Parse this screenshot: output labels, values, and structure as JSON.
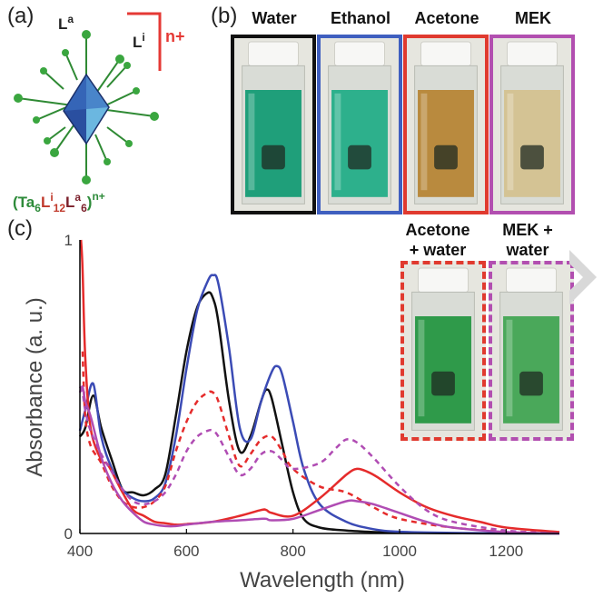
{
  "panels": {
    "a": "(a)",
    "b": "(b)",
    "c": "(c)"
  },
  "structure": {
    "ligand_apical": "L",
    "ligand_apical_sup": "a",
    "ligand_inner": "L",
    "ligand_inner_sup": "i",
    "charge": "n+",
    "formula": {
      "open": "(",
      "ta": "Ta",
      "ta_sub": "6",
      "li": "L",
      "li_sup": "i",
      "li_sub": "12",
      "la": "L",
      "la_sup": "a",
      "la_sub": "6",
      "close": ")",
      "charge": "n+"
    },
    "colors": {
      "ta": "#2e8b3a",
      "li": "#c0392b",
      "la": "#7b1f2a",
      "bracket": "#e53935"
    }
  },
  "cuvettes": [
    {
      "label": "Water",
      "frame": "#111111",
      "liquid": "#1f9f7a",
      "dashed": false
    },
    {
      "label": "Ethanol",
      "frame": "#3f5fbf",
      "liquid": "#2db08c",
      "dashed": false
    },
    {
      "label": "Acetone",
      "frame": "#e03a2f",
      "liquid": "#b98a3e",
      "dashed": false
    },
    {
      "label": "MEK",
      "frame": "#b24fb0",
      "liquid": "#d4c394",
      "dashed": false
    },
    {
      "label": "Acetone + water",
      "line1": "Acetone",
      "line2": "+ water",
      "frame": "#e03a2f",
      "liquid": "#2f9a4a",
      "dashed": true
    },
    {
      "label": "MEK + water",
      "line1": "MEK +",
      "line2": "water",
      "frame": "#b24fb0",
      "liquid": "#4aa85a",
      "dashed": true
    }
  ],
  "chart_data": {
    "type": "line",
    "xlabel": "Wavelength (nm)",
    "ylabel": "Absorbance (a. u.)",
    "xlim": [
      400,
      1300
    ],
    "ylim": [
      0,
      1
    ],
    "xticks": [
      400,
      600,
      800,
      1000,
      1200
    ],
    "yticks": [
      0,
      1
    ],
    "grid": false,
    "series": [
      {
        "color": "#111111",
        "dash": false,
        "x": [
          400,
          410,
          425,
          440,
          460,
          480,
          500,
          520,
          540,
          560,
          580,
          600,
          620,
          640,
          650,
          660,
          680,
          700,
          720,
          740,
          750,
          760,
          780,
          800,
          820,
          850,
          900,
          950,
          1000,
          1100,
          1200,
          1300
        ],
        "y": [
          0.33,
          0.36,
          0.47,
          0.36,
          0.25,
          0.15,
          0.14,
          0.13,
          0.15,
          0.2,
          0.4,
          0.62,
          0.77,
          0.82,
          0.8,
          0.72,
          0.45,
          0.28,
          0.33,
          0.45,
          0.49,
          0.46,
          0.3,
          0.14,
          0.05,
          0.02,
          0.01,
          0.005,
          0.003,
          0.001,
          0.0,
          0.0
        ]
      },
      {
        "color": "#3b4bb5",
        "dash": false,
        "x": [
          400,
          410,
          425,
          440,
          460,
          480,
          500,
          520,
          540,
          560,
          580,
          600,
          620,
          640,
          650,
          660,
          680,
          700,
          720,
          740,
          760,
          770,
          780,
          800,
          820,
          850,
          900,
          950,
          1000,
          1100,
          1200,
          1300
        ],
        "y": [
          0.35,
          0.42,
          0.51,
          0.33,
          0.22,
          0.15,
          0.12,
          0.11,
          0.12,
          0.17,
          0.33,
          0.56,
          0.76,
          0.86,
          0.88,
          0.85,
          0.63,
          0.36,
          0.32,
          0.45,
          0.55,
          0.57,
          0.54,
          0.38,
          0.22,
          0.1,
          0.04,
          0.015,
          0.006,
          0.002,
          0.001,
          0.0
        ]
      },
      {
        "color": "#e52b2b",
        "dash": false,
        "x": [
          402,
          405,
          410,
          420,
          440,
          450,
          460,
          480,
          500,
          520,
          540,
          560,
          580,
          600,
          650,
          700,
          740,
          750,
          760,
          800,
          850,
          900,
          920,
          940,
          960,
          1000,
          1050,
          1100,
          1150,
          1200,
          1300
        ],
        "y": [
          1.0,
          0.9,
          0.6,
          0.36,
          0.25,
          0.24,
          0.21,
          0.14,
          0.08,
          0.06,
          0.04,
          0.035,
          0.03,
          0.032,
          0.04,
          0.06,
          0.08,
          0.08,
          0.07,
          0.06,
          0.12,
          0.2,
          0.22,
          0.21,
          0.19,
          0.14,
          0.09,
          0.06,
          0.04,
          0.02,
          0.005
        ]
      },
      {
        "color": "#e52b2b",
        "dash": true,
        "x": [
          405,
          410,
          420,
          440,
          460,
          480,
          500,
          520,
          540,
          560,
          580,
          600,
          620,
          640,
          650,
          660,
          680,
          700,
          720,
          740,
          760,
          780,
          800,
          850,
          900,
          950,
          1000,
          1100,
          1200,
          1300
        ],
        "y": [
          0.62,
          0.4,
          0.3,
          0.24,
          0.16,
          0.11,
          0.09,
          0.09,
          0.11,
          0.16,
          0.28,
          0.38,
          0.45,
          0.48,
          0.48,
          0.45,
          0.33,
          0.23,
          0.27,
          0.32,
          0.33,
          0.28,
          0.22,
          0.16,
          0.14,
          0.09,
          0.05,
          0.02,
          0.008,
          0.002
        ]
      },
      {
        "color": "#b04cb3",
        "dash": false,
        "x": [
          400,
          405,
          410,
          420,
          440,
          460,
          480,
          500,
          520,
          540,
          560,
          580,
          600,
          650,
          700,
          740,
          750,
          760,
          800,
          850,
          900,
          920,
          950,
          1000,
          1050,
          1100,
          1200,
          1300
        ],
        "y": [
          0.48,
          0.5,
          0.45,
          0.4,
          0.26,
          0.17,
          0.11,
          0.07,
          0.04,
          0.03,
          0.025,
          0.025,
          0.03,
          0.04,
          0.045,
          0.05,
          0.05,
          0.045,
          0.05,
          0.08,
          0.11,
          0.11,
          0.1,
          0.07,
          0.04,
          0.02,
          0.005,
          0.0
        ]
      },
      {
        "color": "#b04cb3",
        "dash": true,
        "x": [
          400,
          405,
          410,
          420,
          440,
          460,
          480,
          500,
          520,
          540,
          560,
          580,
          600,
          620,
          640,
          650,
          660,
          680,
          700,
          720,
          740,
          760,
          780,
          800,
          850,
          880,
          900,
          920,
          950,
          1000,
          1050,
          1100,
          1200,
          1300
        ],
        "y": [
          0.5,
          0.48,
          0.42,
          0.35,
          0.27,
          0.21,
          0.15,
          0.11,
          0.1,
          0.11,
          0.14,
          0.2,
          0.28,
          0.33,
          0.35,
          0.35,
          0.33,
          0.26,
          0.2,
          0.22,
          0.27,
          0.28,
          0.25,
          0.22,
          0.24,
          0.29,
          0.32,
          0.31,
          0.26,
          0.16,
          0.08,
          0.04,
          0.01,
          0.0
        ]
      }
    ]
  }
}
